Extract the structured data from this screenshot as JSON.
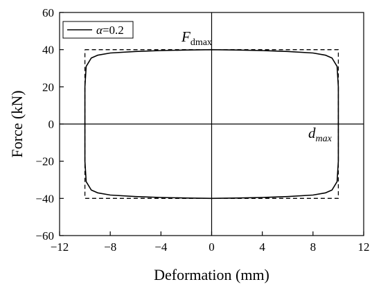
{
  "chart_data": {
    "type": "line",
    "xlabel": "Deformation (mm)",
    "ylabel": "Force (kN)",
    "xlim": [
      -12,
      12
    ],
    "ylim": [
      -60,
      60
    ],
    "xticks": [
      -12,
      -8,
      -4,
      0,
      4,
      8,
      12
    ],
    "yticks": [
      -60,
      -40,
      -20,
      0,
      20,
      40,
      60
    ],
    "xtick_labels": [
      "−12",
      "−8",
      "−4",
      "0",
      "4",
      "8",
      "12"
    ],
    "ytick_labels": [
      "−60",
      "−40",
      "−20",
      "0",
      "20",
      "40",
      "60"
    ],
    "grid": false,
    "legend": {
      "position": "top-left",
      "entries": [
        {
          "symbol": "α",
          "text": "=0.2"
        }
      ]
    },
    "series": [
      {
        "name": "α=0.2",
        "style": "solid",
        "x": [
          -10,
          -9.9,
          -9.5,
          -9,
          -8,
          -6,
          -4,
          -2,
          0,
          2,
          4,
          6,
          8,
          9,
          9.5,
          9.9,
          10,
          10,
          10,
          9.9,
          9.5,
          9,
          8,
          6,
          4,
          2,
          0,
          -2,
          -4,
          -6,
          -8,
          -9,
          -9.5,
          -9.9,
          -10,
          -10
        ],
        "y": [
          20,
          31,
          35.5,
          37,
          38.2,
          39,
          39.5,
          39.8,
          40,
          39.8,
          39.5,
          39,
          38.2,
          37,
          35.5,
          31,
          20,
          0,
          -20,
          -31,
          -35.5,
          -37,
          -38.2,
          -39,
          -39.5,
          -39.8,
          -40,
          -39.8,
          -39.5,
          -39,
          -38.2,
          -37,
          -35.5,
          -31,
          -20,
          20
        ]
      },
      {
        "style": "dashed",
        "x": [
          -10,
          10,
          10,
          -10,
          -10
        ],
        "y": [
          40,
          40,
          -40,
          -40,
          40
        ]
      }
    ],
    "annotations": [
      {
        "main": "F",
        "sub": "dmax"
      },
      {
        "main": "d",
        "sub": "max"
      }
    ]
  }
}
